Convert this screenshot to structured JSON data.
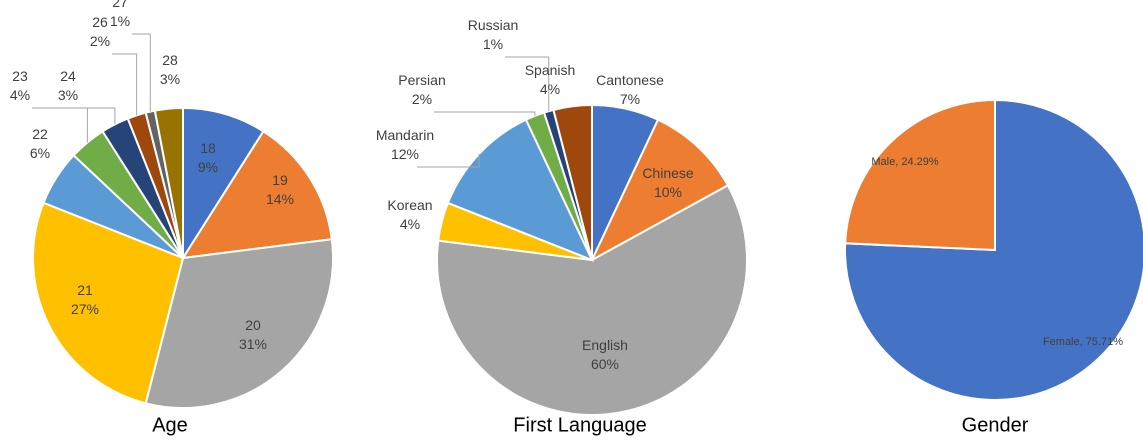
{
  "chart_data": [
    {
      "type": "pie",
      "title": "Age",
      "categories": [
        "18",
        "19",
        "20",
        "21",
        "22",
        "23",
        "24",
        "26",
        "27",
        "28"
      ],
      "values": [
        9,
        14,
        31,
        27,
        6,
        4,
        3,
        2,
        1,
        3
      ],
      "value_labels": [
        "9%",
        "14%",
        "31%",
        "27%",
        "6%",
        "4%",
        "3%",
        "2%",
        "1%",
        "3%"
      ],
      "colors": [
        "#4472c4",
        "#ed7d31",
        "#a5a5a5",
        "#ffc000",
        "#5b9bd5",
        "#70ad47",
        "#264478",
        "#9e480e",
        "#636363",
        "#997300"
      ]
    },
    {
      "type": "pie",
      "title": "First Language",
      "categories": [
        "Cantonese",
        "Chinese",
        "English",
        "Korean",
        "Mandarin",
        "Persian",
        "Russian",
        "Spanish"
      ],
      "values": [
        7,
        10,
        60,
        4,
        12,
        2,
        1,
        4
      ],
      "value_labels": [
        "7%",
        "10%",
        "60%",
        "4%",
        "12%",
        "2%",
        "1%",
        "4%"
      ],
      "colors": [
        "#4472c4",
        "#ed7d31",
        "#a5a5a5",
        "#ffc000",
        "#5b9bd5",
        "#70ad47",
        "#264478",
        "#9e480e"
      ]
    },
    {
      "type": "pie",
      "title": "Gender",
      "categories": [
        "Female",
        "Male"
      ],
      "values": [
        75.71,
        24.29
      ],
      "value_labels": [
        "75.71%",
        "24.29%"
      ],
      "label_separator": ", ",
      "colors": [
        "#4472c4",
        "#ed7d31"
      ]
    }
  ]
}
